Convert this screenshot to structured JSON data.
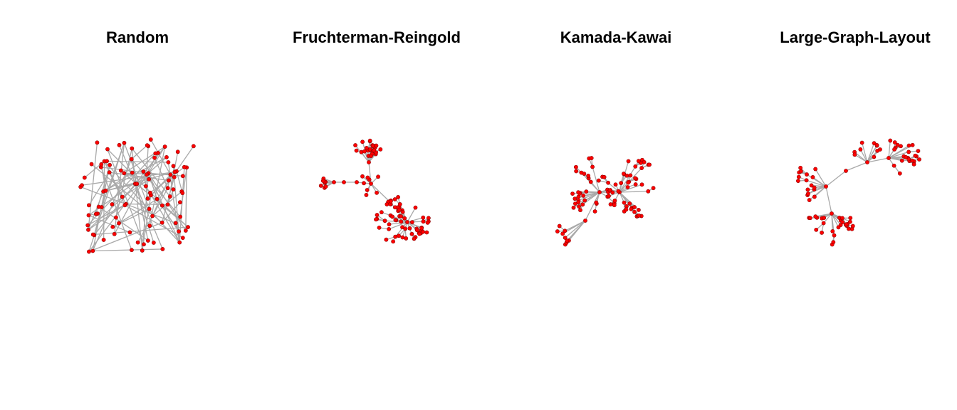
{
  "panels": [
    {
      "title": "Random",
      "layout": "random"
    },
    {
      "title": "Fruchterman-Reingold",
      "layout": "fruchterman-reingold"
    },
    {
      "title": "Kamada-Kawai",
      "layout": "kamada-kawai"
    },
    {
      "title": "Large-Graph-Layout",
      "layout": "large-graph-layout"
    }
  ],
  "colors": {
    "node_fill": "#ff0000",
    "node_stroke": "#8b0000",
    "edge": "#a9a9a9",
    "background": "#ffffff"
  }
}
